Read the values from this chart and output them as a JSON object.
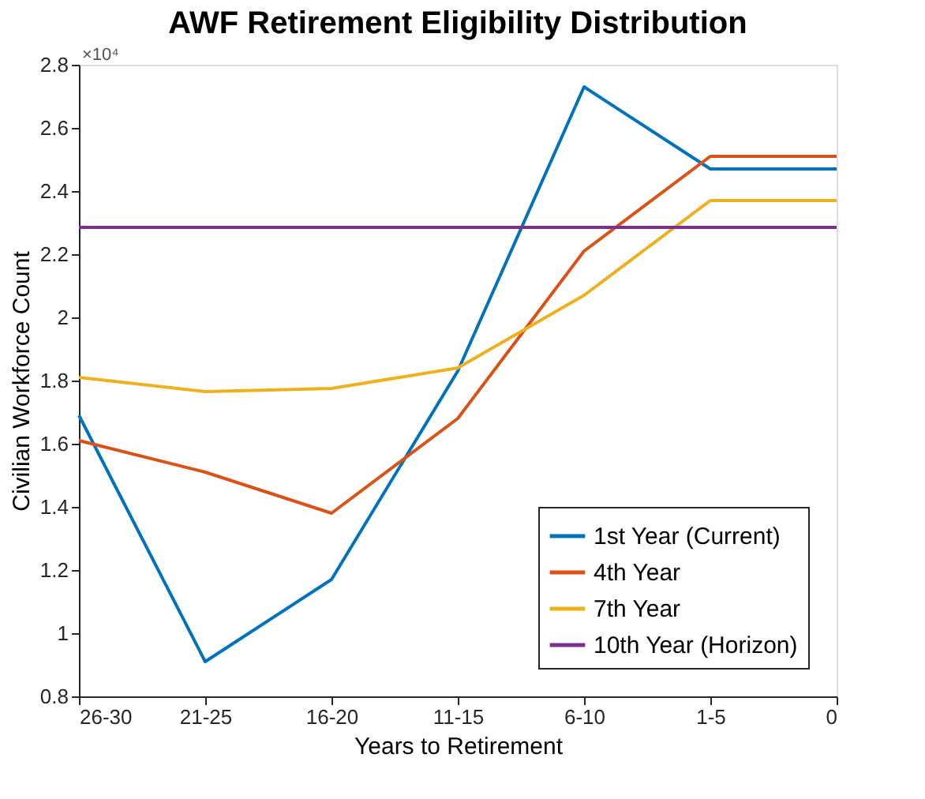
{
  "chart_data": {
    "type": "line",
    "title": "AWF Retirement Eligibility Distribution",
    "xlabel": "Years to Retirement",
    "ylabel": "Civilian Workforce Count",
    "categories": [
      "26-30",
      "21-25",
      "16-20",
      "11-15",
      "6-10",
      "1-5",
      "0"
    ],
    "series": [
      {
        "name": "1st Year (Current)",
        "color": "#0072bd",
        "values": [
          1.69,
          0.91,
          1.17,
          1.83,
          2.73,
          2.47,
          2.47
        ]
      },
      {
        "name": "4th Year",
        "color": "#d95319",
        "values": [
          1.61,
          1.51,
          1.38,
          1.68,
          2.21,
          2.51,
          2.51
        ]
      },
      {
        "name": "7th Year",
        "color": "#edb120",
        "values": [
          1.81,
          1.765,
          1.775,
          1.84,
          2.07,
          2.37,
          2.37
        ]
      },
      {
        "name": "10th Year (Horizon)",
        "color": "#7e2f8e",
        "values": [
          2.285,
          2.285,
          2.285,
          2.285,
          2.285,
          2.285,
          2.285
        ]
      }
    ],
    "ylim": [
      0.8,
      2.8
    ],
    "yticks": [
      0.8,
      1,
      1.2,
      1.4,
      1.6,
      1.8,
      2,
      2.2,
      2.4,
      2.6,
      2.8
    ],
    "annotations": [
      "×10⁴"
    ],
    "grid": false,
    "legend": "bottom right",
    "marker": "none",
    "line_style": "solid"
  }
}
